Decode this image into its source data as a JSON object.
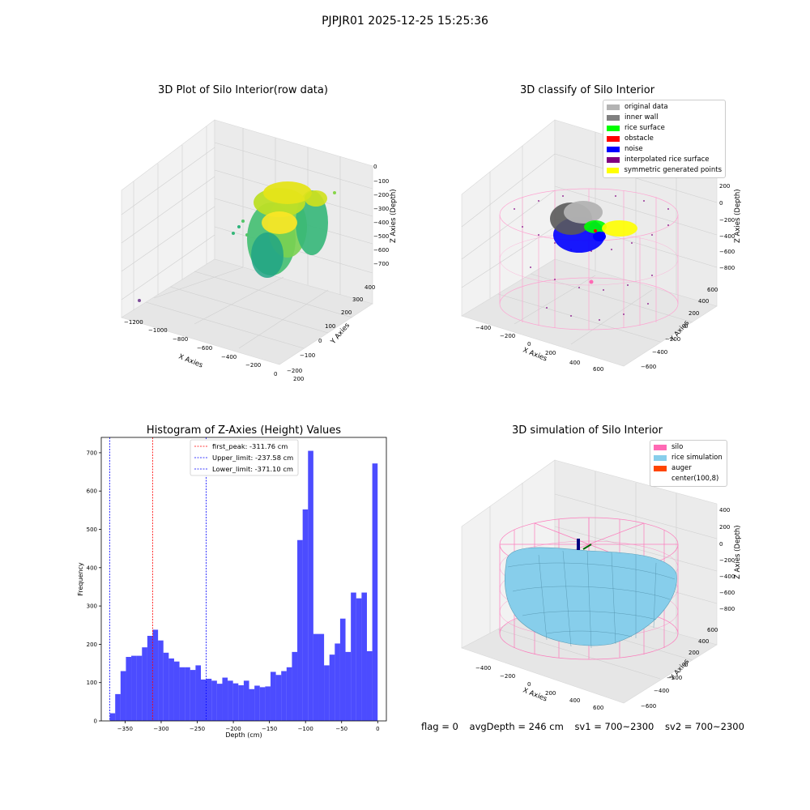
{
  "suptitle": "PJPJR01 2025-12-25 15:25:36",
  "footer": {
    "flag": "flag = 0",
    "avgDepth": "avgDepth = 246 cm",
    "sv1": "sv1 = 700~2300",
    "sv2": "sv2 = 700~2300"
  },
  "colors": {
    "histogram": "#0000ff",
    "first_peak_line": "#ff0000",
    "limit_lines": "#0000ff",
    "silo": "#ff69b4",
    "rice": "#87ceeb"
  },
  "chart_data": [
    {
      "type": "scatter",
      "title": "3D Plot of Silo Interior(row data)",
      "xlabel": "X Axies",
      "ylabel": "Y Axies",
      "zlabel": "Z Axies (Depth)",
      "x_ticks": [
        "−1200",
        "−1000",
        "−800",
        "−600",
        "−400",
        "−200",
        "0",
        "200"
      ],
      "y_ticks": [
        "−200",
        "−100",
        "0",
        "100",
        "200",
        "300",
        "400"
      ],
      "z_ticks": [
        "0",
        "−100",
        "−200",
        "−300",
        "−400",
        "−500",
        "−600",
        "−700"
      ]
    },
    {
      "type": "scatter",
      "title": "3D classify of Silo Interior",
      "xlabel": "X Axies",
      "ylabel": "Y Axies",
      "zlabel": "Z Axies (Depth)",
      "x_ticks": [
        "−400",
        "−200",
        "0",
        "200",
        "400",
        "600"
      ],
      "y_ticks": [
        "−600",
        "−400",
        "−200",
        "0",
        "200",
        "400",
        "600"
      ],
      "z_ticks": [
        "200",
        "0",
        "−200",
        "−400",
        "−600",
        "−800"
      ],
      "legend": [
        {
          "label": "original data",
          "color": "#b3b3b3"
        },
        {
          "label": "inner wall",
          "color": "#808080"
        },
        {
          "label": "rice surface",
          "color": "#00ff00"
        },
        {
          "label": "obstacle",
          "color": "#ff0000"
        },
        {
          "label": "noise",
          "color": "#0000ff"
        },
        {
          "label": "interpolated rice surface",
          "color": "#800080"
        },
        {
          "label": "symmetric generated points",
          "color": "#ffff00"
        }
      ]
    },
    {
      "type": "bar",
      "title": "Histogram of Z-Axies (Height) Values",
      "xlabel": "Depth (cm)",
      "ylabel": "Frequency",
      "xlim": [
        -383,
        12
      ],
      "ylim": [
        0,
        740
      ],
      "x_ticks": [
        -350,
        -300,
        -250,
        -200,
        -150,
        -100,
        -50,
        0
      ],
      "y_ticks": [
        0,
        100,
        200,
        300,
        400,
        500,
        600,
        700
      ],
      "bin_start": -371.1,
      "bin_width": 7.42,
      "values": [
        20,
        70,
        130,
        167,
        170,
        170,
        192,
        222,
        238,
        210,
        178,
        163,
        155,
        140,
        140,
        133,
        145,
        108,
        110,
        105,
        97,
        113,
        105,
        98,
        93,
        105,
        83,
        92,
        88,
        90,
        128,
        120,
        130,
        140,
        180,
        472,
        552,
        705,
        227,
        227,
        145,
        173,
        202,
        267,
        180,
        335,
        320,
        335,
        182,
        672
      ],
      "lines": [
        {
          "label": "first_peak: -311.76 cm",
          "x": -311.76,
          "color": "#ff0000"
        },
        {
          "label": "Upper_limit: -237.58 cm",
          "x": -237.58,
          "color": "#0000ff"
        },
        {
          "label": "Lower_limit: -371.10 cm",
          "x": -371.1,
          "color": "#0000ff"
        }
      ]
    },
    {
      "type": "other",
      "title": "3D simulation of Silo Interior",
      "xlabel": "X Axies",
      "ylabel": "Y Axies",
      "zlabel": "Z Axies (Depth)",
      "x_ticks": [
        "−400",
        "−200",
        "0",
        "200",
        "400",
        "600"
      ],
      "y_ticks": [
        "−600",
        "−400",
        "−200",
        "0",
        "200",
        "400",
        "600"
      ],
      "z_ticks": [
        "400",
        "200",
        "0",
        "−200",
        "−400",
        "−600",
        "−800"
      ],
      "legend": [
        {
          "label": "silo",
          "color": "#ff69b4"
        },
        {
          "label": "rice simulation",
          "color": "#87ceeb"
        },
        {
          "label": "auger",
          "color": "#ff4500"
        },
        {
          "label": "center(100,8)",
          "color": ""
        }
      ]
    }
  ]
}
